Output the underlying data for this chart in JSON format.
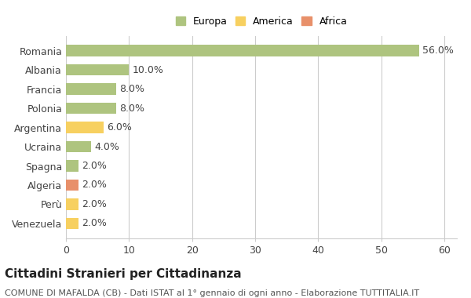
{
  "countries": [
    "Venezuela",
    "Perù",
    "Algeria",
    "Spagna",
    "Ucraina",
    "Argentina",
    "Polonia",
    "Francia",
    "Albania",
    "Romania"
  ],
  "values": [
    2.0,
    2.0,
    2.0,
    2.0,
    4.0,
    6.0,
    8.0,
    8.0,
    10.0,
    56.0
  ],
  "categories": [
    "America",
    "America",
    "Africa",
    "Europa",
    "Europa",
    "America",
    "Europa",
    "Europa",
    "Europa",
    "Europa"
  ],
  "colors": {
    "Europa": "#aec47f",
    "America": "#f7d060",
    "Africa": "#e8906a"
  },
  "legend_labels": [
    "Europa",
    "America",
    "Africa"
  ],
  "legend_colors": [
    "#aec47f",
    "#f7d060",
    "#e8906a"
  ],
  "title": "Cittadini Stranieri per Cittadinanza",
  "subtitle": "COMUNE DI MAFALDA (CB) - Dati ISTAT al 1° gennaio di ogni anno - Elaborazione TUTTITALIA.IT",
  "xlim": [
    0,
    62
  ],
  "xticks": [
    0,
    10,
    20,
    30,
    40,
    50,
    60
  ],
  "bg_color": "#ffffff",
  "grid_color": "#cccccc",
  "bar_label_fontsize": 9,
  "axis_label_fontsize": 9,
  "title_fontsize": 11,
  "subtitle_fontsize": 8
}
